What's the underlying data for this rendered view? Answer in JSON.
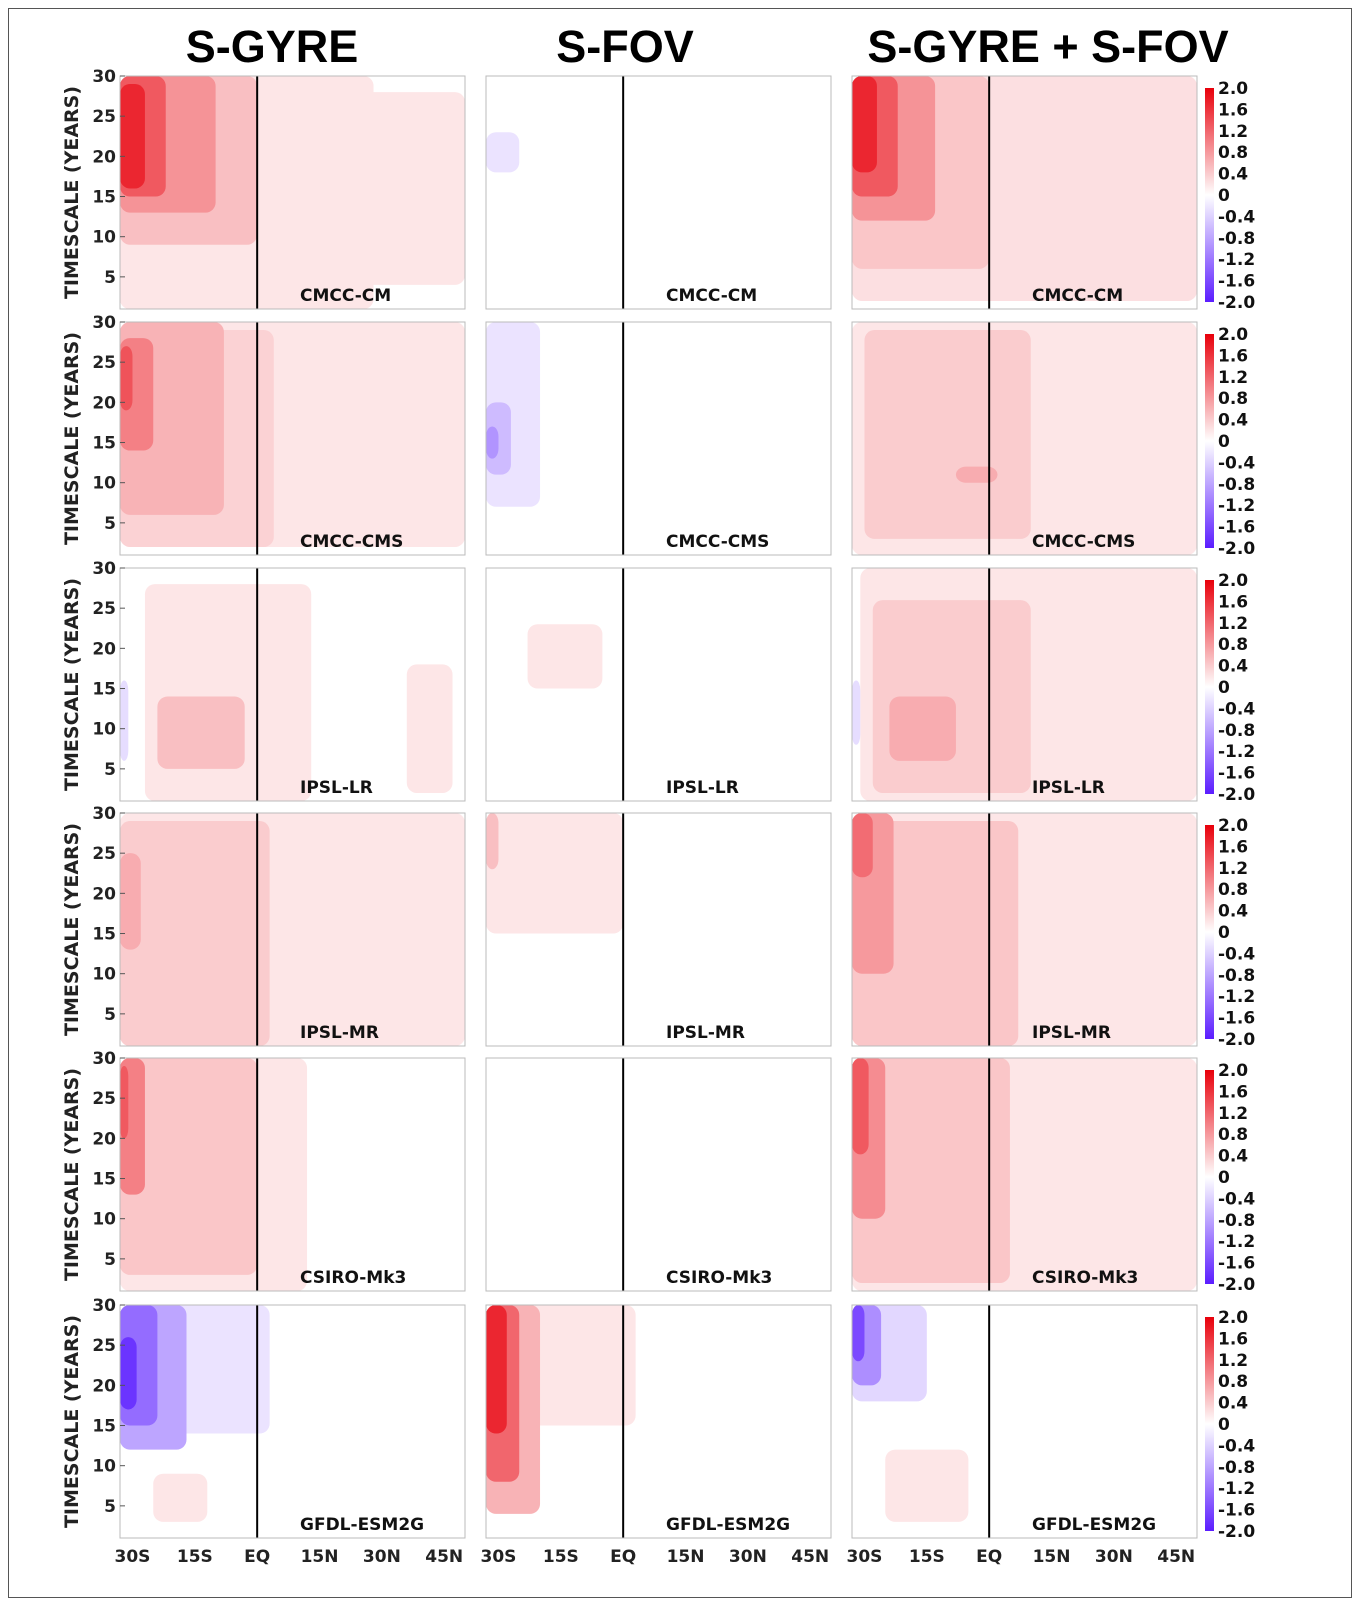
{
  "chart_data": {
    "type": "heatmap",
    "column_titles": [
      "S-GYRE",
      "S-FOV",
      "S-GYRE + S-FOV"
    ],
    "ylabel": "TIMESCALE (YEARS)",
    "xlabel": "",
    "x_ticks": [
      "30S",
      "15S",
      "EQ",
      "15N",
      "30N",
      "45N"
    ],
    "x_tick_values": [
      -30,
      -15,
      0,
      15,
      30,
      45
    ],
    "xlim": [
      -33,
      50
    ],
    "y_ticks": [
      "5",
      "10",
      "15",
      "20",
      "25",
      "30"
    ],
    "y_tick_values": [
      5,
      10,
      15,
      20,
      25,
      30
    ],
    "ylim": [
      1,
      30
    ],
    "colorbar_ticks": [
      "2.0",
      "1.6",
      "1.2",
      "0.8",
      "0.4",
      "0",
      "-0.4",
      "-0.8",
      "-1.2",
      "-1.6",
      "-2.0"
    ],
    "colorbar_values": [
      2.0,
      1.6,
      1.2,
      0.8,
      0.4,
      0,
      -0.4,
      -0.8,
      -1.2,
      -1.6,
      -2.0
    ],
    "colormap": {
      "negative_end": "#5b1dff",
      "zero": "#ffffff",
      "positive_end": "#e8000b"
    },
    "equator_line_x": 0,
    "models": [
      "CMCC-CM",
      "CMCC-CMS",
      "IPSL-LR",
      "IPSL-MR",
      "CSIRO-Mk3",
      "GFDL-ESM2G"
    ],
    "panels": [
      {
        "row": 0,
        "col": 0,
        "regions": [
          {
            "lat": [
              -33,
              12
            ],
            "t": [
              1,
              30
            ],
            "v": 0.35
          },
          {
            "lat": [
              -33,
              28
            ],
            "t": [
              1,
              30
            ],
            "v": 0.2
          },
          {
            "lat": [
              10,
              50
            ],
            "t": [
              4,
              28
            ],
            "v": 0.2
          },
          {
            "lat": [
              -33,
              0
            ],
            "t": [
              9,
              30
            ],
            "v": 0.5
          },
          {
            "lat": [
              -33,
              -10
            ],
            "t": [
              13,
              30
            ],
            "v": 0.85
          },
          {
            "lat": [
              -33,
              -22
            ],
            "t": [
              15,
              30
            ],
            "v": 1.3
          },
          {
            "lat": [
              -33,
              -27
            ],
            "t": [
              16,
              29
            ],
            "v": 1.7
          }
        ]
      },
      {
        "row": 0,
        "col": 1,
        "regions": [
          {
            "lat": [
              -33,
              -25
            ],
            "t": [
              18,
              23
            ],
            "v": -0.25
          }
        ]
      },
      {
        "row": 0,
        "col": 2,
        "regions": [
          {
            "lat": [
              -33,
              50
            ],
            "t": [
              2,
              30
            ],
            "v": 0.25
          },
          {
            "lat": [
              -33,
              0
            ],
            "t": [
              6,
              30
            ],
            "v": 0.45
          },
          {
            "lat": [
              -33,
              -13
            ],
            "t": [
              12,
              30
            ],
            "v": 0.85
          },
          {
            "lat": [
              -33,
              -22
            ],
            "t": [
              15,
              30
            ],
            "v": 1.3
          },
          {
            "lat": [
              -33,
              -27
            ],
            "t": [
              18,
              30
            ],
            "v": 1.7
          }
        ]
      },
      {
        "row": 1,
        "col": 0,
        "regions": [
          {
            "lat": [
              -33,
              50
            ],
            "t": [
              2,
              30
            ],
            "v": 0.2
          },
          {
            "lat": [
              -33,
              4
            ],
            "t": [
              2,
              29
            ],
            "v": 0.35
          },
          {
            "lat": [
              -33,
              -8
            ],
            "t": [
              6,
              30
            ],
            "v": 0.6
          },
          {
            "lat": [
              -33,
              -25
            ],
            "t": [
              14,
              28
            ],
            "v": 1.0
          },
          {
            "lat": [
              -33,
              -30
            ],
            "t": [
              19,
              27
            ],
            "v": 1.35
          }
        ]
      },
      {
        "row": 1,
        "col": 1,
        "regions": [
          {
            "lat": [
              -33,
              -20
            ],
            "t": [
              7,
              30
            ],
            "v": -0.25
          },
          {
            "lat": [
              -33,
              -27
            ],
            "t": [
              11,
              20
            ],
            "v": -0.6
          },
          {
            "lat": [
              -33,
              -30
            ],
            "t": [
              13,
              17
            ],
            "v": -0.95
          }
        ]
      },
      {
        "row": 1,
        "col": 2,
        "regions": [
          {
            "lat": [
              -33,
              50
            ],
            "t": [
              1,
              30
            ],
            "v": 0.2
          },
          {
            "lat": [
              -30,
              10
            ],
            "t": [
              3,
              29
            ],
            "v": 0.4
          },
          {
            "lat": [
              -8,
              2
            ],
            "t": [
              10,
              12
            ],
            "v": 0.65
          }
        ]
      },
      {
        "row": 2,
        "col": 0,
        "regions": [
          {
            "lat": [
              -27,
              13
            ],
            "t": [
              1,
              28
            ],
            "v": 0.2
          },
          {
            "lat": [
              36,
              47
            ],
            "t": [
              2,
              18
            ],
            "v": 0.2
          },
          {
            "lat": [
              -24,
              -3
            ],
            "t": [
              5,
              14
            ],
            "v": 0.5
          },
          {
            "lat": [
              -33,
              -31
            ],
            "t": [
              6,
              16
            ],
            "v": -0.3
          }
        ]
      },
      {
        "row": 2,
        "col": 1,
        "regions": [
          {
            "lat": [
              -23,
              -5
            ],
            "t": [
              15,
              23
            ],
            "v": 0.2
          }
        ]
      },
      {
        "row": 2,
        "col": 2,
        "regions": [
          {
            "lat": [
              -31,
              50
            ],
            "t": [
              1,
              30
            ],
            "v": 0.2
          },
          {
            "lat": [
              -28,
              10
            ],
            "t": [
              2,
              26
            ],
            "v": 0.4
          },
          {
            "lat": [
              -24,
              -8
            ],
            "t": [
              6,
              14
            ],
            "v": 0.65
          },
          {
            "lat": [
              -33,
              -31
            ],
            "t": [
              8,
              16
            ],
            "v": -0.3
          }
        ]
      },
      {
        "row": 3,
        "col": 0,
        "regions": [
          {
            "lat": [
              -33,
              50
            ],
            "t": [
              1,
              30
            ],
            "v": 0.2
          },
          {
            "lat": [
              -33,
              3
            ],
            "t": [
              1,
              29
            ],
            "v": 0.4
          },
          {
            "lat": [
              -33,
              -28
            ],
            "t": [
              13,
              25
            ],
            "v": 0.65
          }
        ]
      },
      {
        "row": 3,
        "col": 1,
        "regions": [
          {
            "lat": [
              -33,
              0
            ],
            "t": [
              15,
              30
            ],
            "v": 0.2
          },
          {
            "lat": [
              -33,
              -30
            ],
            "t": [
              23,
              30
            ],
            "v": 0.5
          }
        ]
      },
      {
        "row": 3,
        "col": 2,
        "regions": [
          {
            "lat": [
              -33,
              50
            ],
            "t": [
              1,
              30
            ],
            "v": 0.2
          },
          {
            "lat": [
              -33,
              7
            ],
            "t": [
              1,
              29
            ],
            "v": 0.45
          },
          {
            "lat": [
              -33,
              -23
            ],
            "t": [
              10,
              30
            ],
            "v": 0.8
          },
          {
            "lat": [
              -33,
              -28
            ],
            "t": [
              22,
              30
            ],
            "v": 1.15
          }
        ]
      },
      {
        "row": 4,
        "col": 0,
        "regions": [
          {
            "lat": [
              -33,
              12
            ],
            "t": [
              1,
              30
            ],
            "v": 0.2
          },
          {
            "lat": [
              -33,
              0
            ],
            "t": [
              3,
              30
            ],
            "v": 0.45
          },
          {
            "lat": [
              -33,
              -27
            ],
            "t": [
              13,
              30
            ],
            "v": 1.0
          },
          {
            "lat": [
              -33,
              -31
            ],
            "t": [
              20,
              29
            ],
            "v": 1.3
          }
        ]
      },
      {
        "row": 4,
        "col": 1,
        "regions": []
      },
      {
        "row": 4,
        "col": 2,
        "regions": [
          {
            "lat": [
              -33,
              50
            ],
            "t": [
              1,
              30
            ],
            "v": 0.2
          },
          {
            "lat": [
              -33,
              5
            ],
            "t": [
              2,
              30
            ],
            "v": 0.45
          },
          {
            "lat": [
              -33,
              -25
            ],
            "t": [
              10,
              30
            ],
            "v": 0.9
          },
          {
            "lat": [
              -33,
              -29
            ],
            "t": [
              18,
              30
            ],
            "v": 1.3
          }
        ]
      },
      {
        "row": 5,
        "col": 0,
        "regions": [
          {
            "lat": [
              -33,
              3
            ],
            "t": [
              14,
              30
            ],
            "v": -0.25
          },
          {
            "lat": [
              -33,
              -17
            ],
            "t": [
              12,
              30
            ],
            "v": -0.8
          },
          {
            "lat": [
              -33,
              -24
            ],
            "t": [
              15,
              30
            ],
            "v": -1.3
          },
          {
            "lat": [
              -33,
              -29
            ],
            "t": [
              17,
              26
            ],
            "v": -1.8
          },
          {
            "lat": [
              -25,
              -12
            ],
            "t": [
              3,
              9
            ],
            "v": 0.2
          }
        ]
      },
      {
        "row": 5,
        "col": 1,
        "regions": [
          {
            "lat": [
              -33,
              3
            ],
            "t": [
              15,
              30
            ],
            "v": 0.2
          },
          {
            "lat": [
              -33,
              -20
            ],
            "t": [
              4,
              30
            ],
            "v": 0.6
          },
          {
            "lat": [
              -33,
              -25
            ],
            "t": [
              8,
              30
            ],
            "v": 1.2
          },
          {
            "lat": [
              -33,
              -28
            ],
            "t": [
              14,
              30
            ],
            "v": 1.7
          }
        ]
      },
      {
        "row": 5,
        "col": 2,
        "regions": [
          {
            "lat": [
              -33,
              -15
            ],
            "t": [
              18,
              30
            ],
            "v": -0.35
          },
          {
            "lat": [
              -33,
              -26
            ],
            "t": [
              20,
              30
            ],
            "v": -1.0
          },
          {
            "lat": [
              -33,
              -30
            ],
            "t": [
              23,
              30
            ],
            "v": -1.6
          },
          {
            "lat": [
              -25,
              -5
            ],
            "t": [
              3,
              12
            ],
            "v": 0.2
          }
        ]
      }
    ]
  }
}
